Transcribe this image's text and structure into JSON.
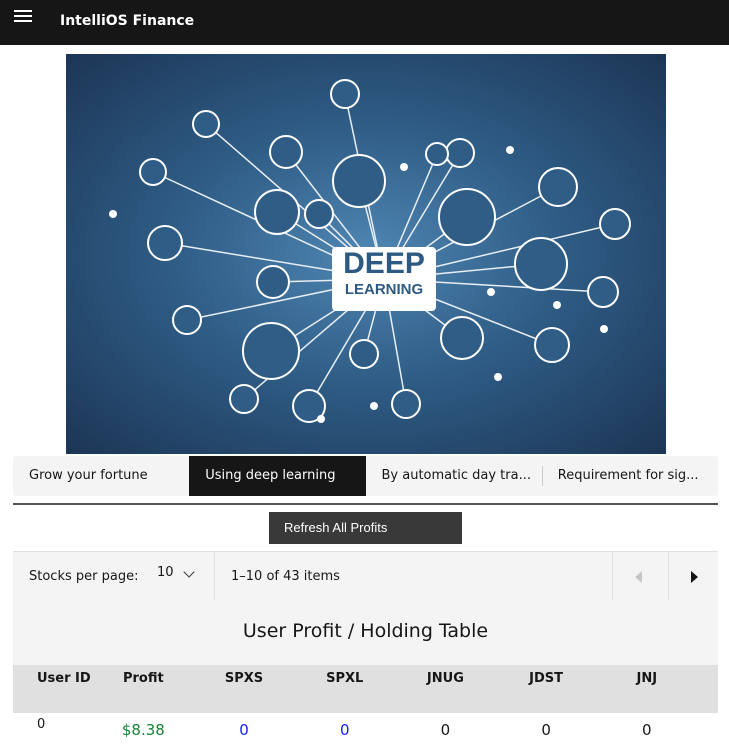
{
  "header": {
    "title": "IntelliOS Finance",
    "menu_icon": "hamburger-icon"
  },
  "hero": {
    "line1": "DEEP",
    "line2": "LEARNING"
  },
  "tabs": [
    {
      "label": "Grow your fortune",
      "selected": false
    },
    {
      "label": "Using deep learning",
      "selected": true
    },
    {
      "label": "By automatic day tra...",
      "selected": false
    },
    {
      "label": "Requirement for sig...",
      "selected": false
    }
  ],
  "refresh_button": "Refresh All Profits",
  "pagination": {
    "per_page_label": "Stocks per page:",
    "per_page_value": "10",
    "range": "1–10 of 43 items"
  },
  "table": {
    "title": "User Profit / Holding Table",
    "columns": [
      "User ID",
      "Profit",
      "SPXS",
      "SPXL",
      "JNUG",
      "JDST",
      "JNJ"
    ],
    "rows": [
      [
        "0",
        "$8.38",
        "0",
        "0",
        "0",
        "0",
        "0"
      ]
    ]
  },
  "colors": {
    "header_bg": "#161616",
    "profit_positive": "#198038",
    "link_value": "#0f1fff"
  }
}
